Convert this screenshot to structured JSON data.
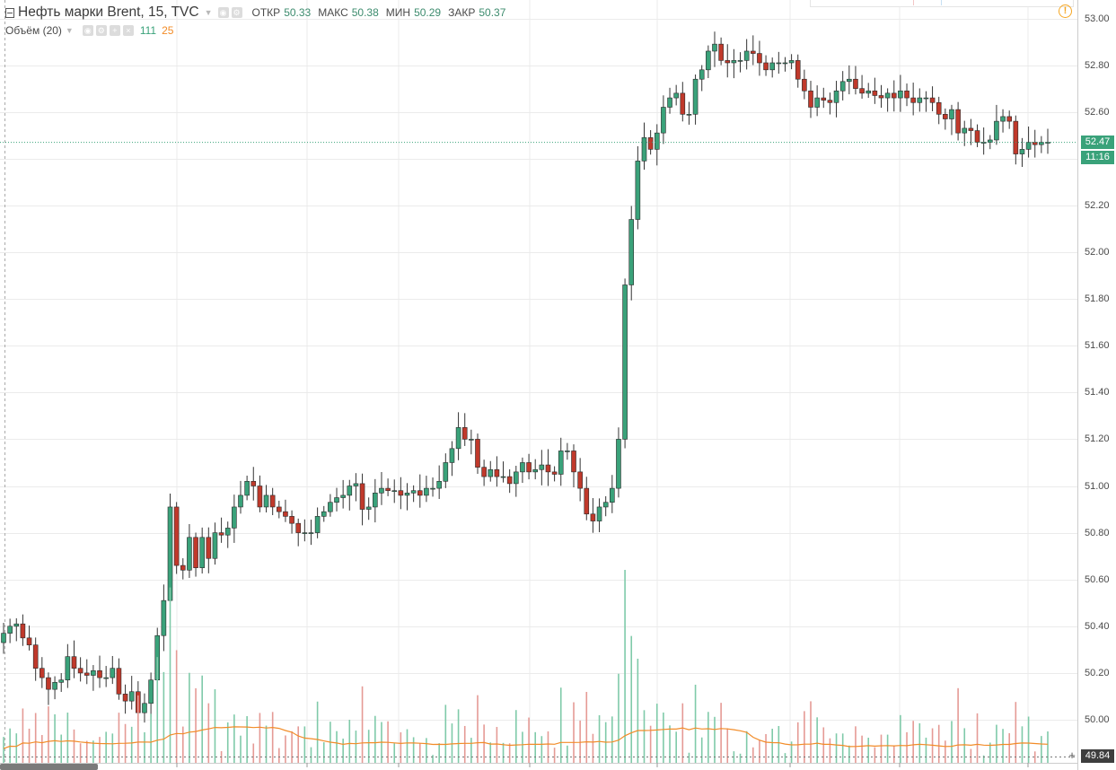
{
  "header": {
    "symbol_title": "Нефть марки Brent, 15, TVC",
    "ohlc": [
      {
        "key": "ОТКР",
        "value": "50.33"
      },
      {
        "key": "МАКС",
        "value": "50.38"
      },
      {
        "key": "МИН",
        "value": "50.29"
      },
      {
        "key": "ЗАКР",
        "value": "50.37"
      }
    ]
  },
  "volume_legend": {
    "label": "Объём (20)",
    "value": "111",
    "ma_value": "25"
  },
  "price_axis": {
    "ticks": [
      "53.00",
      "52.80",
      "52.60",
      "52.40",
      "52.20",
      "52.00",
      "51.80",
      "51.60",
      "51.40",
      "51.20",
      "51.00",
      "50.80",
      "50.60",
      "50.40",
      "50.20",
      "50.00"
    ]
  },
  "last_price_label": "52.47",
  "countdown_label": "11:16",
  "bottom_price_label": "49.84",
  "icons": {
    "alert": "alert-clock-icon",
    "collapse": "collapse-icon"
  },
  "colors": {
    "up": "#3aa27a",
    "down": "#c0392b",
    "ma": "#f28c28",
    "last_price": "#3aa27a"
  },
  "chart_data": {
    "type": "candlestick",
    "y_range": [
      49.84,
      53.03
    ],
    "grid": true,
    "closes": [
      50.37,
      50.4,
      50.41,
      50.35,
      50.32,
      50.22,
      50.18,
      50.13,
      50.16,
      50.17,
      50.27,
      50.22,
      50.2,
      50.19,
      50.21,
      50.18,
      50.18,
      50.22,
      50.11,
      50.08,
      50.12,
      50.03,
      50.07,
      50.17,
      50.36,
      50.51,
      50.91,
      50.66,
      50.64,
      50.78,
      50.65,
      50.78,
      50.69,
      50.8,
      50.79,
      50.82,
      50.91,
      50.96,
      51.02,
      51.0,
      50.91,
      50.96,
      50.91,
      50.89,
      50.87,
      50.84,
      50.8,
      50.8,
      50.8,
      50.87,
      50.89,
      50.93,
      50.95,
      50.96,
      51.0,
      51.01,
      50.9,
      50.91,
      50.97,
      50.99,
      50.98,
      50.98,
      50.96,
      50.97,
      50.98,
      50.96,
      50.99,
      50.99,
      51.02,
      51.1,
      51.16,
      51.25,
      51.2,
      51.2,
      51.08,
      51.04,
      51.07,
      51.04,
      51.04,
      51.01,
      51.06,
      51.1,
      51.06,
      51.07,
      51.09,
      51.06,
      51.05,
      51.15,
      51.15,
      51.06,
      50.99,
      50.88,
      50.85,
      50.91,
      50.93,
      50.99,
      51.2,
      51.86,
      52.14,
      52.39,
      52.49,
      52.44,
      52.51,
      52.62,
      52.66,
      52.68,
      52.59,
      52.59,
      52.74,
      52.78,
      52.86,
      52.89,
      52.82,
      52.81,
      52.82,
      52.82,
      52.86,
      52.85,
      52.81,
      52.78,
      52.81,
      52.81,
      52.81,
      52.82,
      52.74,
      52.69,
      52.62,
      52.66,
      52.65,
      52.64,
      52.69,
      52.73,
      52.74,
      52.7,
      52.68,
      52.69,
      52.67,
      52.66,
      52.68,
      52.66,
      52.69,
      52.66,
      52.64,
      52.66,
      52.66,
      52.64,
      52.59,
      52.57,
      52.61,
      52.51,
      52.53,
      52.52,
      52.47,
      52.47,
      52.48,
      52.56,
      52.58,
      52.56,
      52.42,
      52.44,
      52.47,
      52.46,
      52.47,
      52.47
    ]
  }
}
